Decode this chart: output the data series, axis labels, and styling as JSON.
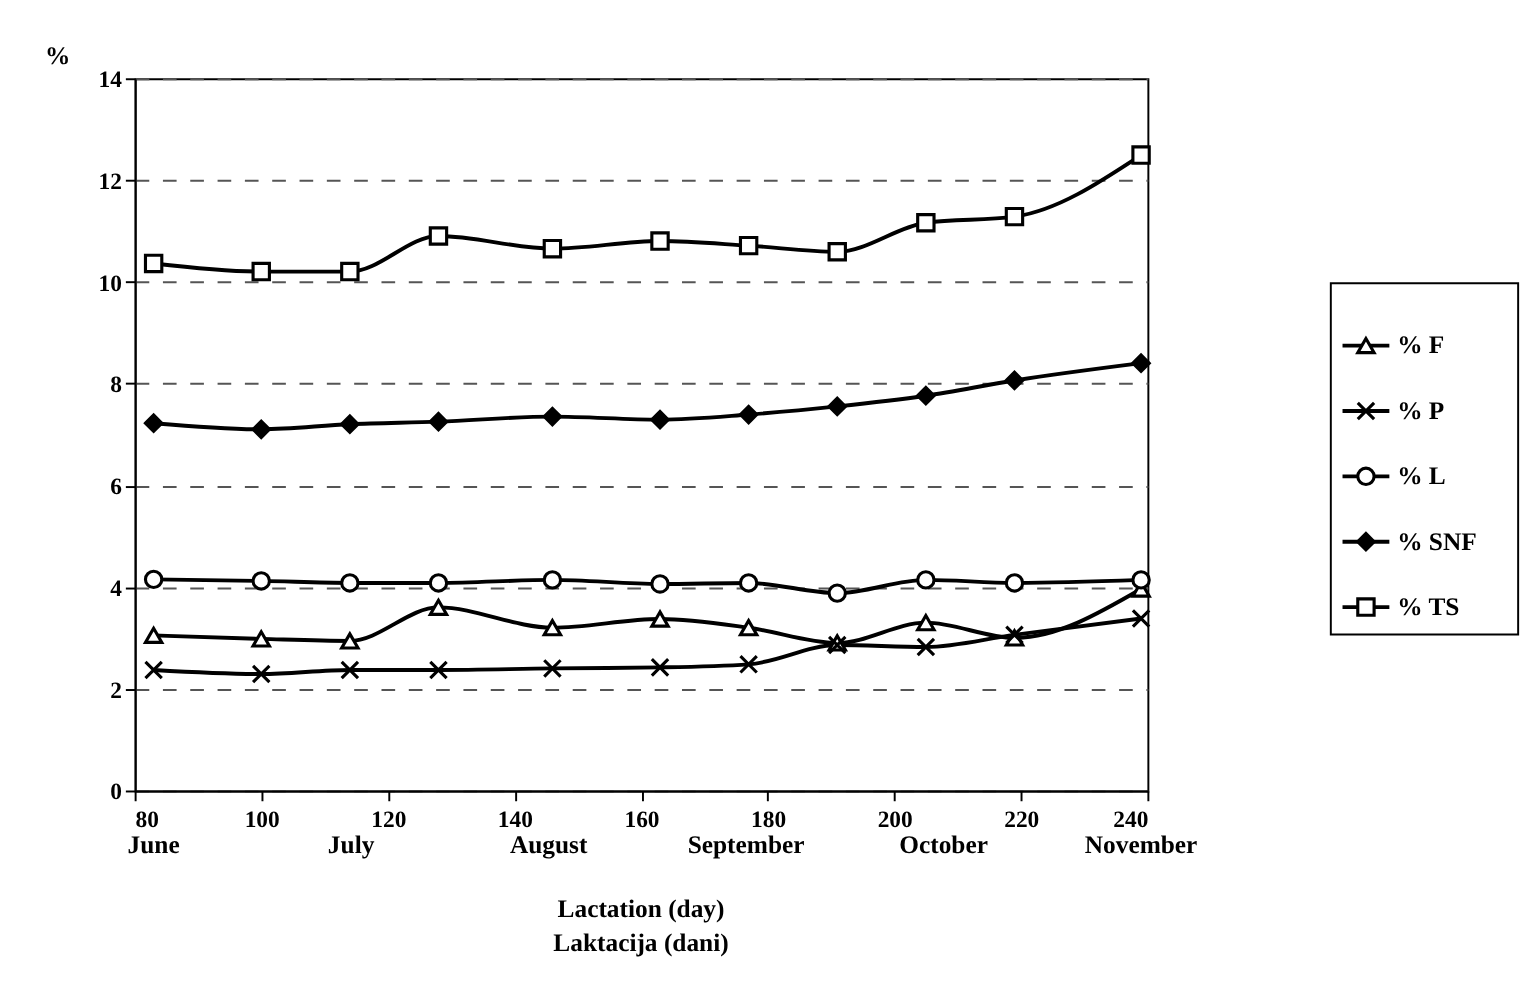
{
  "chart_data": {
    "type": "line",
    "ylabel": "%",
    "xlabel": "Lactation (day)\nLaktacija (dani)",
    "x": [
      83,
      100,
      114,
      128,
      146,
      163,
      177,
      191,
      205,
      219,
      239
    ],
    "xlim": [
      80,
      240
    ],
    "xticks": [
      80,
      100,
      120,
      140,
      160,
      180,
      200,
      220,
      240
    ],
    "ylim": [
      0,
      14
    ],
    "yticks": [
      0,
      2,
      4,
      6,
      8,
      10,
      12,
      14
    ],
    "grid": "y",
    "legend": "right",
    "line_style": "solid",
    "annotations": [
      "June",
      "July",
      "August",
      "September",
      "October",
      "November"
    ],
    "series": [
      {
        "name": "% F",
        "color": "#000000",
        "marker": "triangle",
        "values": [
          3.05,
          2.98,
          2.94,
          3.6,
          3.2,
          3.37,
          3.2,
          2.9,
          3.3,
          3.0,
          3.96
        ]
      },
      {
        "name": "% P",
        "color": "#000000",
        "marker": "cross",
        "values": [
          2.37,
          2.29,
          2.37,
          2.37,
          2.4,
          2.42,
          2.48,
          2.86,
          2.82,
          3.06,
          3.38
        ]
      },
      {
        "name": "% L",
        "color": "#000000",
        "marker": "circle",
        "values": [
          4.15,
          4.12,
          4.08,
          4.08,
          4.14,
          4.06,
          4.08,
          3.88,
          4.14,
          4.08,
          4.14
        ]
      },
      {
        "name": "% SNF",
        "color": "#000000",
        "marker": "diamond",
        "values": [
          7.22,
          7.1,
          7.2,
          7.25,
          7.35,
          7.29,
          7.39,
          7.55,
          7.76,
          8.06,
          8.4
        ]
      },
      {
        "name": "% TS",
        "color": "#000000",
        "marker": "square",
        "values": [
          10.36,
          10.2,
          10.2,
          10.9,
          10.65,
          10.8,
          10.71,
          10.59,
          11.16,
          11.28,
          12.49
        ]
      }
    ]
  }
}
